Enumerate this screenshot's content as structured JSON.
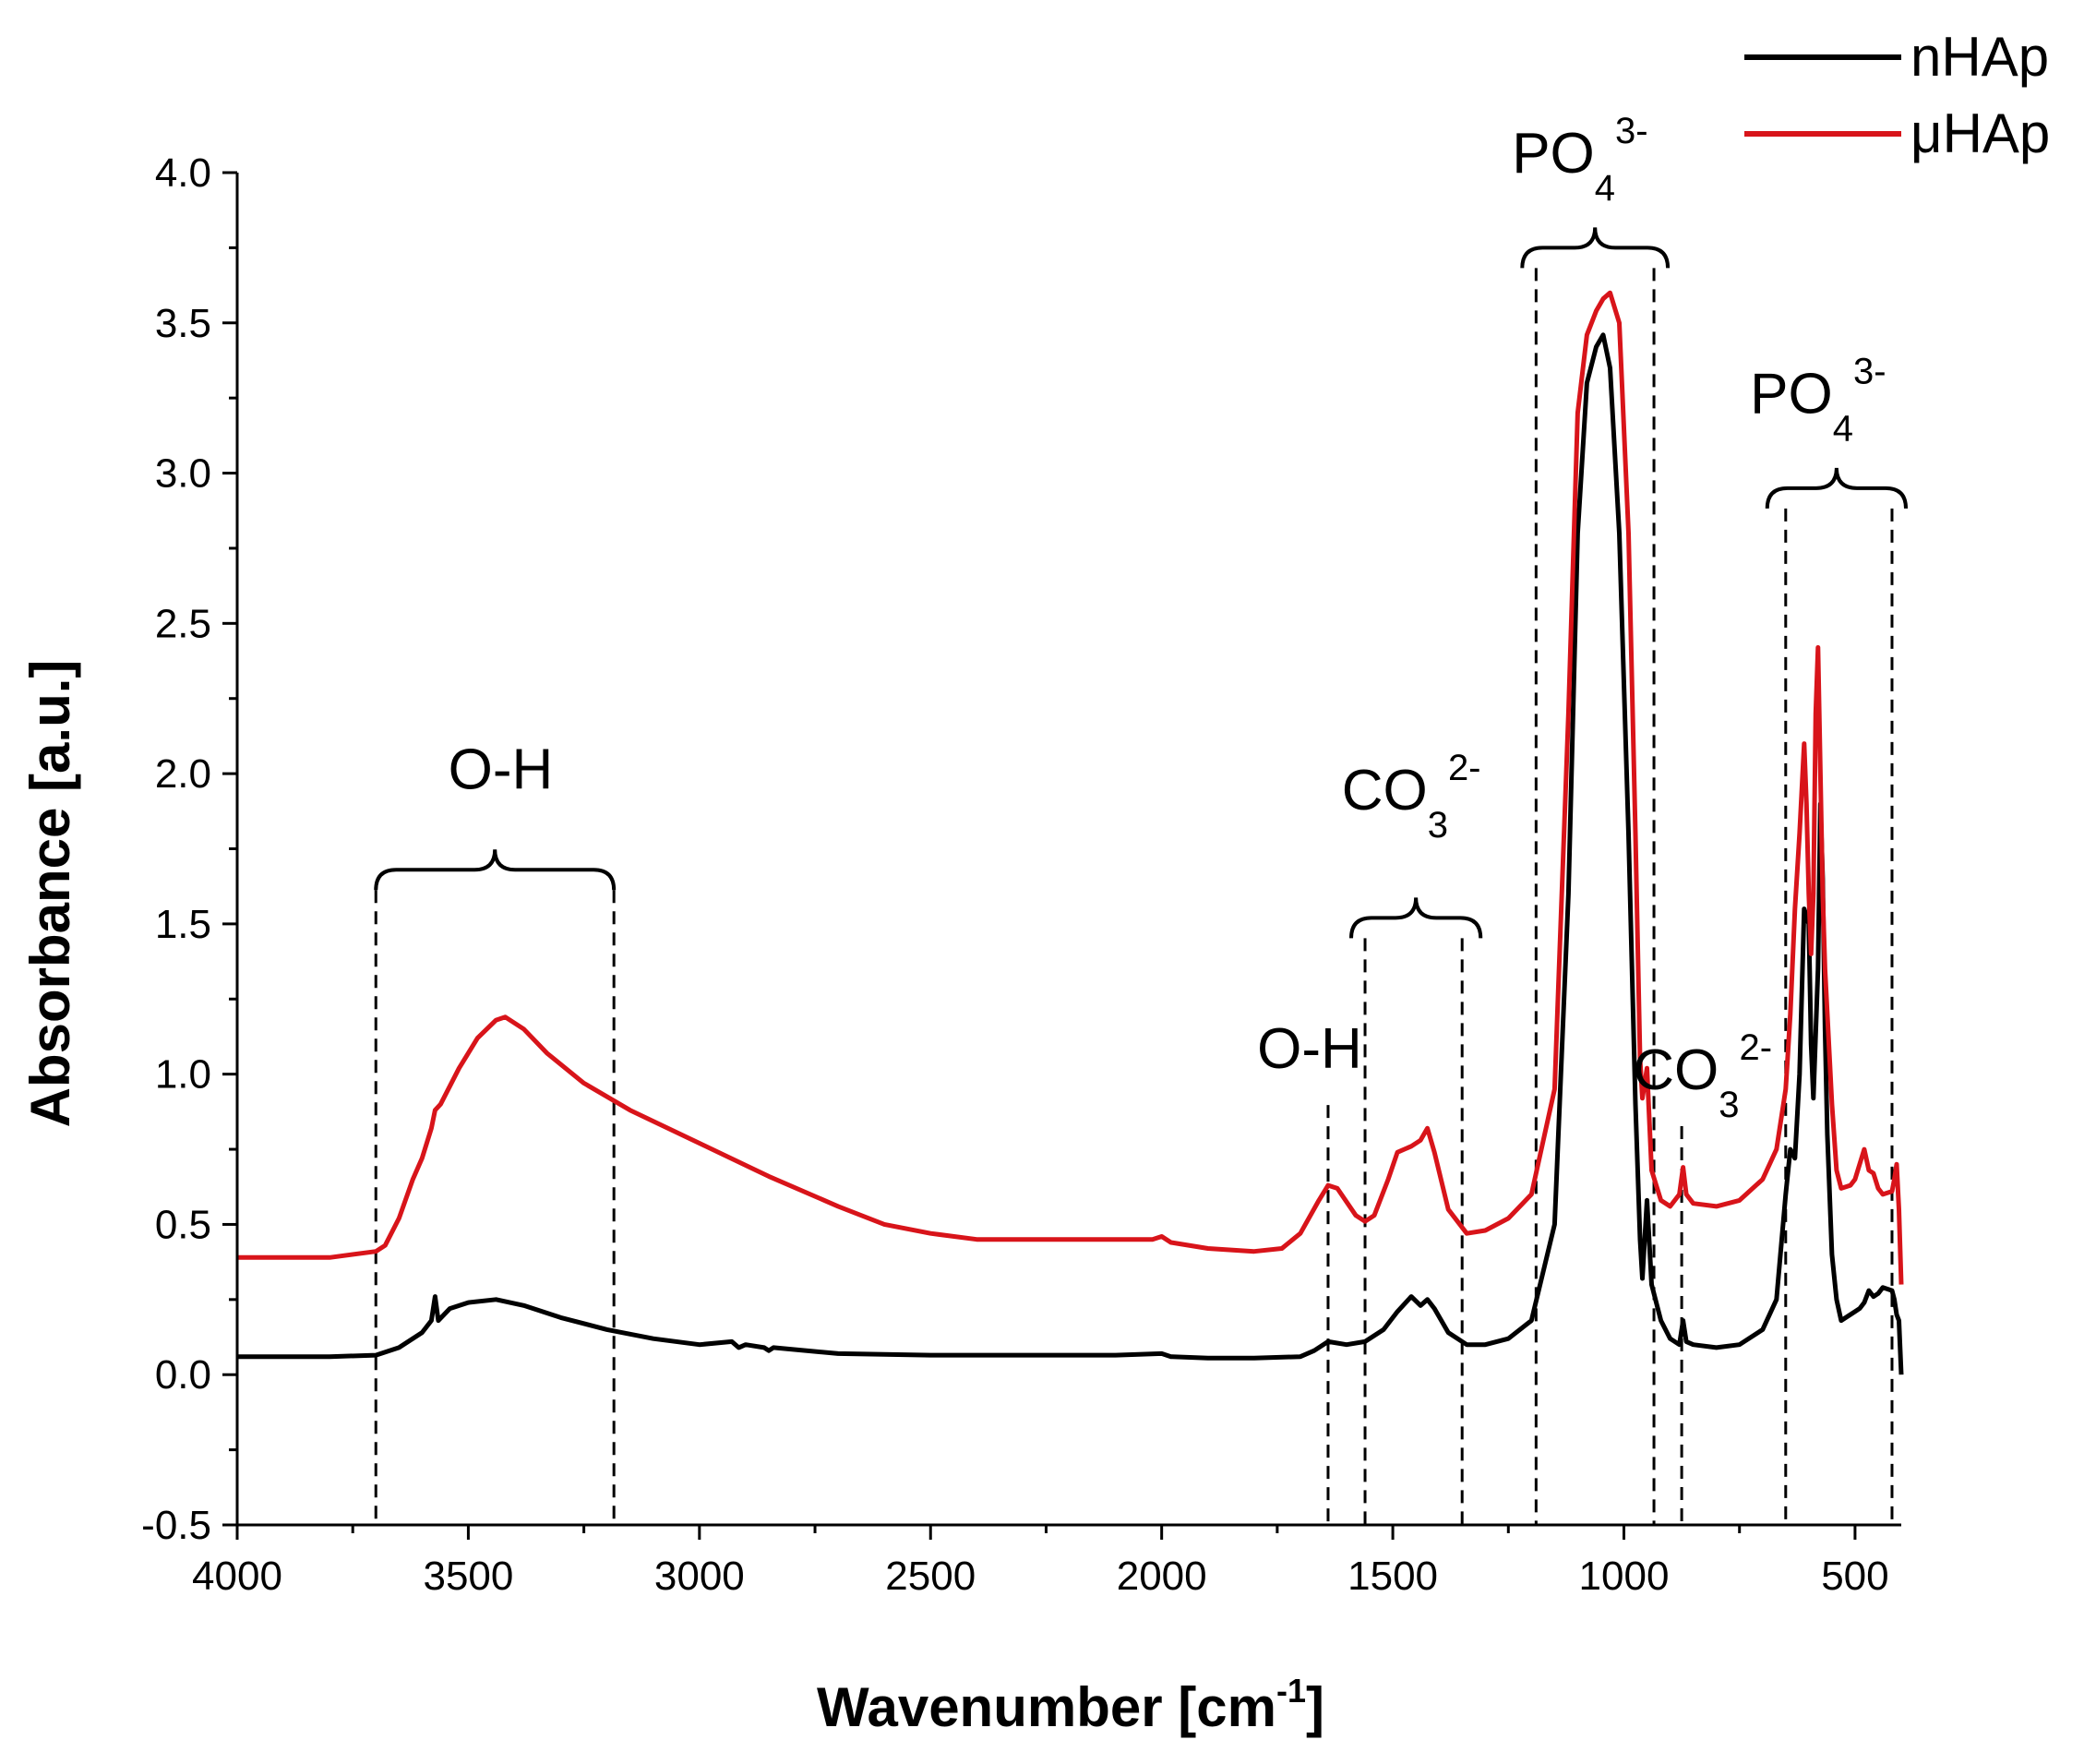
{
  "chart_data": {
    "type": "line",
    "xlabel": "Wavenumber [cm",
    "xlabel_sup": "-1",
    "xlabel_end": "]",
    "ylabel": "Absorbance [a.u.]",
    "xlim": [
      4000,
      400
    ],
    "ylim": [
      -0.5,
      4.0
    ],
    "x_ticks": [
      4000,
      3500,
      3000,
      2500,
      2000,
      1500,
      1000,
      500
    ],
    "x_tick_labels": [
      "4000",
      "3500",
      "3000",
      "2500",
      "2000",
      "1500",
      "1000",
      "500"
    ],
    "y_ticks": [
      -0.5,
      0.0,
      0.5,
      1.0,
      1.5,
      2.0,
      2.5,
      3.0,
      3.5,
      4.0
    ],
    "y_tick_labels": [
      "-0.5",
      "0.0",
      "0.5",
      "1.0",
      "1.5",
      "2.0",
      "2.5",
      "3.0",
      "3.5",
      "4.0"
    ],
    "legend": {
      "position": "top-right",
      "entries": [
        "nHAp",
        "μHAp"
      ]
    },
    "series": [
      {
        "name": "nHAp",
        "color": "#000000",
        "x": [
          4000,
          3800,
          3700,
          3650,
          3600,
          3580,
          3572,
          3565,
          3540,
          3500,
          3440,
          3380,
          3300,
          3200,
          3100,
          3000,
          2930,
          2915,
          2900,
          2860,
          2850,
          2840,
          2700,
          2500,
          2300,
          2100,
          2000,
          1980,
          1900,
          1800,
          1700,
          1670,
          1640,
          1600,
          1560,
          1520,
          1490,
          1460,
          1440,
          1425,
          1410,
          1380,
          1340,
          1300,
          1250,
          1200,
          1150,
          1120,
          1100,
          1080,
          1060,
          1045,
          1030,
          1010,
          990,
          975,
          965,
          960,
          950,
          940,
          920,
          900,
          880,
          872,
          865,
          850,
          800,
          750,
          700,
          670,
          650,
          640,
          630,
          620,
          610,
          600,
          595,
          590,
          580,
          575,
          570,
          565,
          560,
          550,
          540,
          530,
          510,
          500,
          490,
          480,
          470,
          460,
          450,
          440,
          420,
          415,
          410,
          405,
          400
        ],
        "values": [
          0.06,
          0.06,
          0.065,
          0.09,
          0.14,
          0.18,
          0.26,
          0.18,
          0.22,
          0.24,
          0.25,
          0.23,
          0.19,
          0.15,
          0.12,
          0.1,
          0.11,
          0.09,
          0.1,
          0.09,
          0.08,
          0.09,
          0.07,
          0.065,
          0.065,
          0.065,
          0.07,
          0.06,
          0.055,
          0.055,
          0.06,
          0.08,
          0.11,
          0.1,
          0.11,
          0.15,
          0.21,
          0.26,
          0.23,
          0.25,
          0.22,
          0.14,
          0.1,
          0.1,
          0.12,
          0.18,
          0.5,
          1.6,
          2.8,
          3.3,
          3.42,
          3.46,
          3.35,
          2.8,
          1.8,
          0.9,
          0.45,
          0.32,
          0.58,
          0.3,
          0.18,
          0.12,
          0.1,
          0.18,
          0.11,
          0.1,
          0.09,
          0.1,
          0.15,
          0.25,
          0.6,
          0.75,
          0.72,
          1.0,
          1.55,
          1.5,
          1.1,
          0.92,
          1.35,
          1.9,
          1.65,
          1.15,
          0.8,
          0.4,
          0.25,
          0.18,
          0.2,
          0.21,
          0.22,
          0.24,
          0.28,
          0.26,
          0.27,
          0.29,
          0.28,
          0.25,
          0.2,
          0.18,
          0.0
        ]
      },
      {
        "name": "μHAp",
        "color": "#d8141a",
        "x": [
          4000,
          3800,
          3700,
          3680,
          3650,
          3620,
          3600,
          3580,
          3572,
          3560,
          3520,
          3480,
          3440,
          3420,
          3380,
          3330,
          3250,
          3150,
          3000,
          2850,
          2700,
          2600,
          2500,
          2400,
          2300,
          2200,
          2100,
          2020,
          2000,
          1980,
          1900,
          1800,
          1740,
          1700,
          1660,
          1640,
          1620,
          1580,
          1560,
          1540,
          1510,
          1490,
          1460,
          1440,
          1425,
          1410,
          1380,
          1340,
          1300,
          1250,
          1200,
          1150,
          1120,
          1100,
          1080,
          1060,
          1045,
          1030,
          1010,
          990,
          975,
          965,
          960,
          950,
          940,
          920,
          900,
          880,
          872,
          865,
          850,
          800,
          750,
          700,
          670,
          650,
          640,
          630,
          620,
          610,
          605,
          600,
          595,
          590,
          585,
          580,
          575,
          570,
          565,
          560,
          550,
          540,
          530,
          510,
          500,
          490,
          480,
          470,
          460,
          450,
          440,
          420,
          415,
          410,
          405,
          400
        ],
        "values": [
          0.39,
          0.39,
          0.41,
          0.43,
          0.52,
          0.65,
          0.72,
          0.82,
          0.88,
          0.9,
          1.02,
          1.12,
          1.18,
          1.19,
          1.15,
          1.07,
          0.97,
          0.88,
          0.77,
          0.66,
          0.56,
          0.5,
          0.47,
          0.45,
          0.45,
          0.45,
          0.45,
          0.45,
          0.46,
          0.44,
          0.42,
          0.41,
          0.42,
          0.47,
          0.58,
          0.63,
          0.62,
          0.53,
          0.51,
          0.53,
          0.65,
          0.74,
          0.76,
          0.78,
          0.82,
          0.74,
          0.55,
          0.47,
          0.48,
          0.52,
          0.6,
          0.95,
          2.2,
          3.2,
          3.46,
          3.54,
          3.58,
          3.6,
          3.5,
          2.8,
          1.8,
          1.05,
          0.92,
          1.02,
          0.68,
          0.58,
          0.56,
          0.6,
          0.69,
          0.6,
          0.57,
          0.56,
          0.58,
          0.65,
          0.75,
          0.95,
          1.2,
          1.55,
          1.8,
          2.1,
          1.9,
          1.6,
          1.4,
          1.6,
          2.2,
          2.42,
          2.0,
          1.6,
          1.35,
          1.2,
          0.9,
          0.68,
          0.62,
          0.63,
          0.65,
          0.7,
          0.75,
          0.68,
          0.67,
          0.62,
          0.6,
          0.61,
          0.65,
          0.7,
          0.55,
          0.3
        ]
      }
    ],
    "annotations": [
      {
        "name": "oh-broad",
        "base": "O-H",
        "sup": "",
        "sub": "",
        "dashed_x": [
          3700,
          3185
        ],
        "brace_x": [
          3700,
          3185
        ],
        "brace_y": 1.68,
        "label_y": 1.95,
        "label_x": 3430
      },
      {
        "name": "oh-bend",
        "base": "O-H",
        "sup": "",
        "sub": "",
        "dashed_x": [
          1640
        ],
        "label_y": 1.02,
        "label_x": 1680
      },
      {
        "name": "co3-1",
        "base": "CO",
        "sup": "2-",
        "sub": "3",
        "dashed_x": [
          1560,
          1350
        ],
        "brace_x": [
          1590,
          1310
        ],
        "brace_y": 1.52,
        "label_y": 1.88,
        "label_x": 1460
      },
      {
        "name": "po4-1",
        "base": "PO",
        "sup": "3-",
        "sub": "4",
        "dashed_x": [
          1190,
          935
        ],
        "brace_x": [
          1220,
          905
        ],
        "brace_y": 3.75,
        "label_y": 4.0,
        "label_x": 1095
      },
      {
        "name": "co3-2",
        "base": "CO",
        "sup": "2-",
        "sub": "3",
        "dashed_x": [
          875
        ],
        "label_y": 0.95,
        "label_x": 830
      },
      {
        "name": "po4-2",
        "base": "PO",
        "sup": "3-",
        "sub": "4",
        "dashed_x": [
          650,
          420
        ],
        "brace_x": [
          690,
          390
        ],
        "brace_y": 2.95,
        "label_y": 3.2,
        "label_x": 580
      }
    ]
  }
}
